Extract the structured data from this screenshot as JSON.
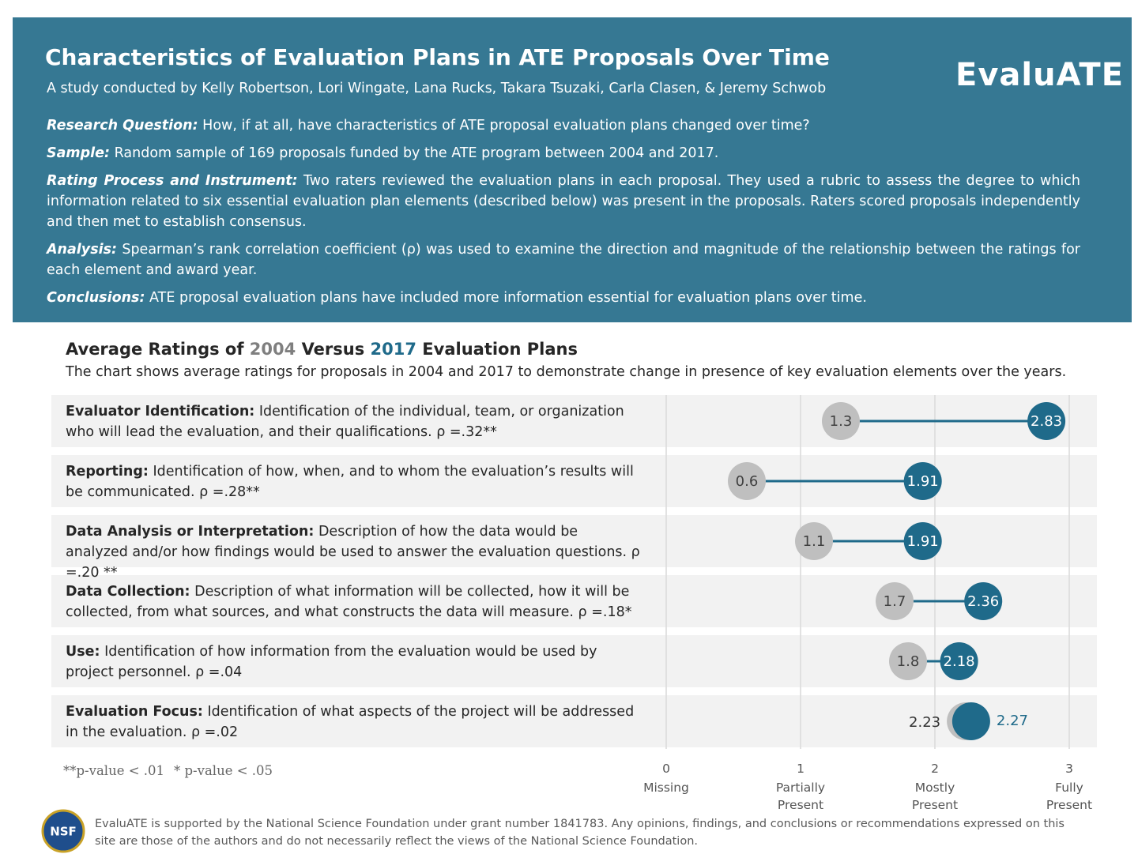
{
  "header": {
    "title": "Characteristics of Evaluation Plans in ATE Proposals Over Time",
    "authors": "A study conducted by Kelly Robertson, Lori Wingate, Lana Rucks, Takara Tsuzaki, Carla Clasen, & Jeremy Schwob",
    "logo": "EvaluATE",
    "sections": [
      {
        "label": "Research Question:",
        "text": "How, if at all, have characteristics of ATE proposal evaluation plans changed over time?"
      },
      {
        "label": "Sample:",
        "text": "Random sample of 169 proposals funded by the ATE program between 2004 and 2017."
      },
      {
        "label": "Rating Process and Instrument:",
        "text": "Two raters reviewed the evaluation plans in each proposal. They used a rubric to assess the degree to which information related to six essential evaluation plan elements (described below) was present in the proposals. Raters scored proposals independently and then met to establish consensus."
      },
      {
        "label": "Analysis:",
        "text": "Spearman’s rank correlation coefficient (ρ) was used to examine the direction and magnitude of the relationship between the ratings for each element and award year."
      },
      {
        "label": "Conclusions:",
        "text": "ATE proposal evaluation plans have included more information essential for evaluation plans over time."
      }
    ]
  },
  "chart_data": {
    "type": "dumbbell",
    "title_start": "Average Ratings of",
    "title_middle": "Versus",
    "title_end": "Evaluation Plans",
    "subtitle": "The chart shows average ratings for proposals in 2004 and 2017 to demonstrate change in presence of key evaluation elements over the years.",
    "categories": [
      "Evaluator Identification:",
      "Reporting:",
      "Data Analysis or Interpretation:",
      "Data Collection:",
      "Use:",
      "Evaluation Focus:"
    ],
    "descriptions": [
      "Identification of the individual, team, or organization who will lead the evaluation, and their qualifications. ρ =.32**",
      "Identification of how, when, and to whom the evaluation’s results will be communicated. ρ =.28**",
      "Description of how the data would be analyzed and/or how findings would be used to answer the evaluation questions. ρ =.20 **",
      "Description of what information will be collected, how it will be collected, from what sources, and what constructs the data will measure. ρ =.18*",
      "Identification of how information from the evaluation would be used by project personnel. ρ =.04",
      "Identification of what aspects of the project will be addressed in the evaluation. ρ =.02"
    ],
    "series": [
      {
        "name": "2004",
        "color": "#bfbfbf",
        "values": [
          1.3,
          0.6,
          1.1,
          1.7,
          1.8,
          2.23
        ]
      },
      {
        "name": "2017",
        "color": "#1f6a8a",
        "values": [
          2.83,
          1.91,
          1.91,
          2.36,
          2.18,
          2.27
        ]
      }
    ],
    "xlim": [
      0,
      3
    ],
    "xticks": [
      0,
      1,
      2,
      3
    ],
    "xtick_names": [
      "Missing",
      "Partially Present",
      "Mostly Present",
      "Fully Present"
    ],
    "grid": true,
    "footnotes": [
      "**p-value < .01",
      "* p-value < .05"
    ]
  },
  "footer": {
    "logo": "NSF",
    "text": "EvaluATE is supported by the National Science Foundation under grant number 1841783. Any opinions, findings, and conclusions or recommendations expressed on this site are those of the authors and do not necessarily reflect the views of the National Science Foundation."
  }
}
